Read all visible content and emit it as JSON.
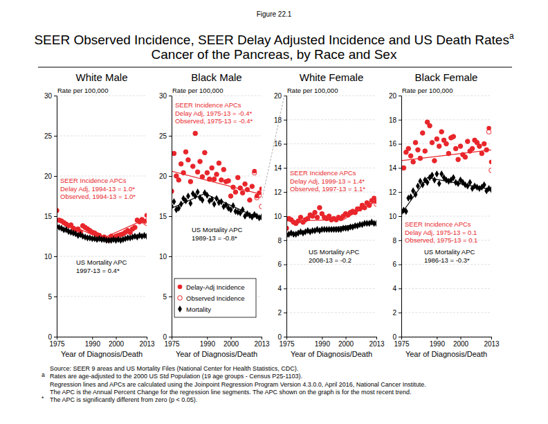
{
  "figure_label": "Figure 22.1",
  "title_lines": [
    "SEER Observed Incidence, SEER Delay Adjusted Incidence and US Death Rates",
    "Cancer of the Pancreas, by Race and Sex"
  ],
  "title_superscript": "a",
  "notes": [
    {
      "text": "Source: SEER 9 areas and US Mortality Files (National Center for Health Statistics, CDC)."
    },
    {
      "marker": "a",
      "text": "Rates are age-adjusted to the 2000 US Std Population (19 age groups - Census P25-1103)."
    },
    {
      "text": "Regression lines and APCs are calculated using the Joinpoint Regression Program Version 4.3.0.0, April 2016, National Cancer Institute."
    },
    {
      "text": "The APC is the Annual Percent Change for the regression line segments. The APC shown on the graph is for the most recent trend."
    },
    {
      "marker": "*",
      "text": "The APC is significantly different from zero (p < 0.05)."
    }
  ],
  "chart_data": [
    {
      "type": "scatter",
      "title": "White Male",
      "y_label": "Rate per 100,000",
      "x_label": "Year of Diagnosis/Death",
      "x": [
        1975,
        1976,
        1977,
        1978,
        1979,
        1980,
        1981,
        1982,
        1983,
        1984,
        1985,
        1986,
        1987,
        1988,
        1989,
        1990,
        1991,
        1992,
        1993,
        1994,
        1995,
        1996,
        1997,
        1998,
        1999,
        2000,
        2001,
        2002,
        2003,
        2004,
        2005,
        2006,
        2007,
        2008,
        2009,
        2010,
        2011,
        2012,
        2013
      ],
      "xlim": [
        1975,
        2013
      ],
      "xticks": [
        1975,
        1990,
        2000,
        2013
      ],
      "ylim": [
        0,
        30
      ],
      "yticks": [
        0,
        5,
        10,
        15,
        20,
        25,
        30
      ],
      "grid": true,
      "annotations": [
        {
          "color": "#e8262b",
          "lines": [
            "SEER Incidence APCs",
            "Delay Adj, 1994-13 = 1.0*",
            "Observed, 1994-13 = 1.0*"
          ]
        },
        {
          "color": "#000000",
          "lines": [
            "US Mortality APC",
            "1997-13 = 0.4*"
          ]
        }
      ],
      "series": [
        {
          "type": "scatter",
          "marker": "circle",
          "color": "#e8262b",
          "values": [
            15.7,
            14.5,
            14.4,
            14.2,
            14.0,
            13.8,
            13.9,
            13.5,
            13.3,
            13.4,
            13.0,
            13.8,
            13.6,
            13.4,
            13.2,
            13.0,
            12.9,
            12.7,
            12.6,
            12.2,
            12.4,
            12.2,
            12.0,
            12.5,
            12.2,
            12.5,
            12.6,
            12.7,
            12.8,
            13.0,
            13.2,
            13.0,
            13.4,
            13.6,
            14.5,
            14.3,
            14.6,
            14.4,
            15.1
          ]
        },
        {
          "type": "scatter",
          "marker": "open-circle",
          "color": "#e8262b",
          "values": [
            15.7,
            14.5,
            14.4,
            14.2,
            14.0,
            13.8,
            13.9,
            13.5,
            13.3,
            13.4,
            13.0,
            13.8,
            13.6,
            13.4,
            13.2,
            13.0,
            12.9,
            12.7,
            12.6,
            12.2,
            12.4,
            12.2,
            12.0,
            12.5,
            12.2,
            12.5,
            12.6,
            12.7,
            12.8,
            13.0,
            13.2,
            13.0,
            13.4,
            13.6,
            14.5,
            14.3,
            14.5,
            14.3,
            14.1
          ]
        },
        {
          "type": "scatter",
          "marker": "diamond",
          "color": "#000000",
          "values": [
            13.7,
            13.6,
            13.5,
            13.3,
            13.3,
            13.1,
            13.0,
            12.9,
            12.8,
            12.6,
            12.7,
            12.5,
            12.4,
            12.3,
            12.3,
            12.2,
            12.2,
            12.1,
            12.2,
            12.1,
            12.1,
            12.0,
            12.0,
            12.0,
            12.1,
            12.0,
            12.1,
            12.0,
            12.1,
            12.2,
            12.3,
            12.3,
            12.4,
            12.5,
            12.4,
            12.6,
            12.5,
            12.6,
            12.5
          ]
        },
        {
          "type": "line",
          "line_style": "solid",
          "color": "#e8262b",
          "x": [
            1975,
            1994,
            2013
          ],
          "values": [
            14.6,
            12.2,
            14.7
          ]
        },
        {
          "type": "line",
          "line_style": "solid",
          "color": "#000000",
          "x": [
            1975,
            1986,
            1997,
            2013
          ],
          "values": [
            13.7,
            12.5,
            12.0,
            12.7
          ]
        }
      ]
    },
    {
      "type": "scatter",
      "title": "Black Male",
      "y_label": "Rate per 100,000",
      "x_label": "Year of Diagnosis/Death",
      "x": [
        1975,
        1976,
        1977,
        1978,
        1979,
        1980,
        1981,
        1982,
        1983,
        1984,
        1985,
        1986,
        1987,
        1988,
        1989,
        1990,
        1991,
        1992,
        1993,
        1994,
        1995,
        1996,
        1997,
        1998,
        1999,
        2000,
        2001,
        2002,
        2003,
        2004,
        2005,
        2006,
        2007,
        2008,
        2009,
        2010,
        2011,
        2012,
        2013
      ],
      "xlim": [
        1975,
        2013
      ],
      "xticks": [
        1975,
        1990,
        2000,
        2013
      ],
      "ylim": [
        0,
        30
      ],
      "yticks": [
        0,
        5,
        10,
        15,
        20,
        25,
        30
      ],
      "grid": true,
      "legend": "bottom-left",
      "annotations": [
        {
          "color": "#e8262b",
          "lines": [
            "SEER Incidence APCs",
            "Delay Adj, 1975-13 = -0.4*",
            "Observed, 1975-13 = -0.4*"
          ]
        },
        {
          "color": "#000000",
          "lines": [
            "US Mortality APC",
            "1989-13 = -0.8*"
          ]
        }
      ],
      "series": [
        {
          "name": "Delay-Adj Incidence",
          "type": "scatter",
          "marker": "circle",
          "color": "#e8262b",
          "values": [
            18.1,
            22.8,
            20.0,
            19.5,
            21.5,
            20.4,
            23.0,
            22.0,
            19.3,
            21.2,
            25.3,
            20.5,
            21.8,
            19.9,
            22.9,
            20.4,
            19.6,
            21.0,
            19.6,
            20.2,
            21.6,
            19.5,
            20.8,
            19.3,
            19.4,
            17.5,
            18.6,
            18.0,
            19.8,
            18.5,
            17.9,
            19.0,
            18.3,
            17.0,
            18.7,
            20.6,
            17.5,
            17.9,
            18.4
          ]
        },
        {
          "name": "Observed Incidence",
          "type": "scatter",
          "marker": "open-circle",
          "color": "#e8262b",
          "values": [
            18.1,
            22.8,
            20.0,
            19.5,
            21.5,
            20.4,
            23.0,
            22.0,
            19.3,
            21.2,
            25.3,
            20.5,
            21.8,
            19.9,
            22.9,
            20.4,
            19.6,
            21.0,
            19.6,
            20.2,
            21.6,
            19.5,
            20.8,
            19.3,
            19.4,
            17.5,
            18.6,
            18.0,
            19.8,
            18.5,
            17.9,
            19.0,
            18.3,
            17.0,
            18.7,
            20.4,
            17.3,
            17.6,
            16.2
          ]
        },
        {
          "name": "Mortality",
          "type": "scatter",
          "marker": "diamond",
          "color": "#000000",
          "values": [
            16.2,
            16.8,
            15.8,
            16.0,
            16.5,
            17.2,
            16.9,
            17.5,
            16.6,
            17.8,
            17.5,
            18.0,
            17.3,
            17.0,
            17.9,
            17.6,
            16.9,
            17.1,
            16.5,
            17.2,
            16.7,
            16.8,
            16.2,
            16.4,
            16.0,
            15.8,
            16.3,
            15.6,
            15.5,
            15.4,
            15.8,
            15.0,
            15.3,
            15.1,
            14.9,
            15.2,
            15.0,
            14.8,
            14.9
          ]
        },
        {
          "type": "line",
          "line_style": "solid",
          "color": "#e8262b",
          "x": [
            1975,
            2013
          ],
          "values": [
            20.6,
            17.7
          ]
        },
        {
          "type": "line",
          "line_style": "solid",
          "color": "#000000",
          "x": [
            1975,
            1989,
            2013
          ],
          "values": [
            16.0,
            17.8,
            14.6
          ]
        }
      ]
    },
    {
      "type": "scatter",
      "title": "White Female",
      "y_label": "Rate per 100,000",
      "x_label": "Year of Diagnosis/Death",
      "x": [
        1975,
        1976,
        1977,
        1978,
        1979,
        1980,
        1981,
        1982,
        1983,
        1984,
        1985,
        1986,
        1987,
        1988,
        1989,
        1990,
        1991,
        1992,
        1993,
        1994,
        1995,
        1996,
        1997,
        1998,
        1999,
        2000,
        2001,
        2002,
        2003,
        2004,
        2005,
        2006,
        2007,
        2008,
        2009,
        2010,
        2011,
        2012,
        2013
      ],
      "xlim": [
        1975,
        2013
      ],
      "xticks": [
        1975,
        1990,
        2000,
        2013
      ],
      "ylim": [
        0,
        20
      ],
      "yticks": [
        0,
        2,
        4,
        6,
        8,
        10,
        12,
        14,
        16,
        18,
        20
      ],
      "grid": true,
      "annotations": [
        {
          "color": "#e8262b",
          "lines": [
            "SEER Incidence APCs",
            "Delay Adj, 1999-13 = 1.4*",
            "Observed, 1997-13 = 1.1*"
          ]
        },
        {
          "color": "#000000",
          "lines": [
            "US Mortality APC",
            "2008-13 = -0.2"
          ]
        }
      ],
      "series": [
        {
          "type": "scatter",
          "marker": "circle",
          "color": "#e8262b",
          "values": [
            9.0,
            9.8,
            9.7,
            9.5,
            9.4,
            9.6,
            9.9,
            9.5,
            9.7,
            9.8,
            10.1,
            10.0,
            10.3,
            9.9,
            10.7,
            10.2,
            9.9,
            9.8,
            10.0,
            9.7,
            9.8,
            9.7,
            9.9,
            9.8,
            10.0,
            10.2,
            10.1,
            10.3,
            10.4,
            10.3,
            10.6,
            10.6,
            10.9,
            10.7,
            11.1,
            10.9,
            11.3,
            11.5,
            11.2
          ]
        },
        {
          "type": "scatter",
          "marker": "open-circle",
          "color": "#e8262b",
          "values": [
            9.0,
            9.8,
            9.7,
            9.5,
            9.4,
            9.6,
            9.9,
            9.5,
            9.7,
            9.8,
            10.1,
            10.0,
            10.3,
            9.9,
            10.7,
            10.2,
            9.9,
            9.8,
            10.0,
            9.7,
            9.8,
            9.7,
            9.9,
            9.8,
            10.0,
            10.2,
            10.1,
            10.3,
            10.4,
            10.3,
            10.6,
            10.6,
            10.9,
            10.7,
            11.1,
            10.9,
            11.2,
            11.3,
            11.0
          ]
        },
        {
          "type": "scatter",
          "marker": "diamond",
          "color": "#000000",
          "values": [
            8.4,
            8.5,
            8.6,
            8.5,
            8.5,
            8.6,
            8.7,
            8.6,
            8.7,
            8.8,
            8.7,
            8.8,
            8.8,
            8.9,
            8.8,
            8.9,
            8.9,
            8.9,
            8.9,
            8.9,
            8.9,
            8.9,
            8.9,
            8.9,
            9.0,
            9.0,
            9.0,
            9.1,
            9.1,
            9.2,
            9.2,
            9.3,
            9.3,
            9.4,
            9.4,
            9.4,
            9.5,
            9.4,
            9.4
          ]
        },
        {
          "type": "line",
          "line_style": "solid",
          "color": "#e8262b",
          "x": [
            1975,
            1999,
            2013
          ],
          "values": [
            9.6,
            9.7,
            11.3
          ]
        },
        {
          "type": "line",
          "line_style": "solid",
          "color": "#000000",
          "x": [
            1975,
            2008,
            2013
          ],
          "values": [
            8.5,
            9.4,
            9.3
          ]
        }
      ]
    },
    {
      "type": "scatter",
      "title": "Black Female",
      "y_label": "Rate per 100,000",
      "x_label": "Year of Diagnosis/Death",
      "x": [
        1975,
        1976,
        1977,
        1978,
        1979,
        1980,
        1981,
        1982,
        1983,
        1984,
        1985,
        1986,
        1987,
        1988,
        1989,
        1990,
        1991,
        1992,
        1993,
        1994,
        1995,
        1996,
        1997,
        1998,
        1999,
        2000,
        2001,
        2002,
        2003,
        2004,
        2005,
        2006,
        2007,
        2008,
        2009,
        2010,
        2011,
        2012,
        2013
      ],
      "xlim": [
        1975,
        2013
      ],
      "xticks": [
        1975,
        1990,
        2000,
        2013
      ],
      "ylim": [
        0,
        20
      ],
      "yticks": [
        0,
        2,
        4,
        6,
        8,
        10,
        12,
        14,
        16,
        18,
        20
      ],
      "grid": true,
      "annotations": [
        {
          "color": "#e8262b",
          "lines": [
            "SEER Incidence APCs",
            "Delay Adj, 1975-13 = 0.1",
            "Observed, 1975-13 = 0.1"
          ]
        },
        {
          "color": "#000000",
          "lines": [
            "US Mortality APC",
            "1986-13 = -0.3*"
          ]
        }
      ],
      "series": [
        {
          "type": "scatter",
          "marker": "circle",
          "color": "#e8262b",
          "values": [
            14.0,
            14.0,
            15.3,
            15.6,
            15.0,
            14.5,
            16.1,
            15.5,
            14.8,
            16.9,
            15.4,
            17.8,
            17.5,
            16.1,
            14.6,
            16.4,
            15.8,
            17.0,
            16.3,
            16.0,
            15.2,
            16.5,
            16.6,
            15.6,
            14.7,
            15.8,
            15.1,
            14.9,
            16.2,
            15.4,
            15.6,
            16.3,
            16.1,
            15.8,
            15.2,
            16.0,
            15.5,
            17.3,
            14.5
          ]
        },
        {
          "type": "scatter",
          "marker": "open-circle",
          "color": "#e8262b",
          "values": [
            14.0,
            14.0,
            15.3,
            15.6,
            15.0,
            14.5,
            16.1,
            15.5,
            14.8,
            16.9,
            15.4,
            17.8,
            17.5,
            16.1,
            14.6,
            16.4,
            15.8,
            17.0,
            16.3,
            16.0,
            15.2,
            16.5,
            16.6,
            15.6,
            14.7,
            15.8,
            15.1,
            14.9,
            16.2,
            15.4,
            15.6,
            16.3,
            16.1,
            15.8,
            15.2,
            16.0,
            15.5,
            17.0,
            13.8
          ]
        },
        {
          "type": "scatter",
          "marker": "diamond",
          "color": "#000000",
          "values": [
            10.3,
            10.5,
            10.4,
            11.5,
            11.6,
            12.1,
            11.8,
            12.5,
            12.9,
            12.6,
            13.0,
            12.8,
            13.2,
            13.4,
            13.0,
            13.5,
            12.7,
            13.5,
            13.2,
            13.0,
            12.9,
            13.0,
            13.2,
            12.8,
            12.7,
            13.0,
            12.8,
            12.6,
            12.5,
            12.8,
            12.3,
            12.5,
            12.4,
            12.3,
            12.4,
            12.6,
            12.1,
            12.3,
            12.2
          ]
        },
        {
          "type": "line",
          "line_style": "solid",
          "color": "#e8262b",
          "x": [
            1975,
            2013
          ],
          "values": [
            14.6,
            15.5
          ]
        },
        {
          "type": "line",
          "line_style": "solid",
          "color": "#000000",
          "x": [
            1975,
            1986,
            2013
          ],
          "values": [
            10.2,
            13.2,
            12.2
          ]
        }
      ]
    }
  ]
}
